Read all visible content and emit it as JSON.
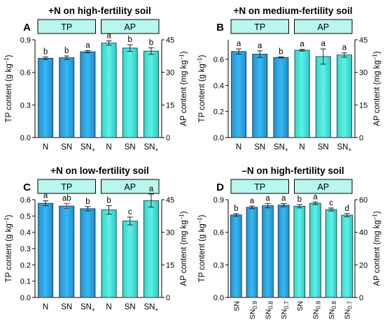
{
  "chart_data": [
    {
      "type": "bar",
      "label": "A",
      "title": "+N on high-fertility soil",
      "groups": [
        "TP",
        "AP"
      ],
      "ylabel_left": "TP content (g kg⁻¹)",
      "ylabel_right": "AP content (mg kg⁻¹)",
      "ylim_left": [
        0,
        0.9
      ],
      "ylim_right": [
        0,
        45
      ],
      "yticks_left": [
        "0.0",
        "0.3",
        "0.6",
        "0.9"
      ],
      "yticks_right": [
        "0",
        "15",
        "30",
        "45"
      ],
      "categories": [
        "N",
        "SN",
        "SN+"
      ],
      "series": [
        {
          "group": "TP",
          "axis": "left",
          "values": [
            0.73,
            0.735,
            0.79
          ],
          "errors": [
            0.012,
            0.016,
            0.01
          ],
          "letters": [
            "b",
            "b",
            "a"
          ]
        },
        {
          "group": "AP",
          "axis": "right",
          "values": [
            43.5,
            41.2,
            39.8
          ],
          "errors": [
            1.0,
            1.5,
            1.5
          ],
          "letters": [
            "a",
            "b",
            "b"
          ]
        }
      ]
    },
    {
      "type": "bar",
      "label": "B",
      "title": "+N on medium-fertility soil",
      "groups": [
        "TP",
        "AP"
      ],
      "ylabel_left": "TP content (g kg⁻¹)",
      "ylabel_right": "AP content (mg kg⁻¹)",
      "ylim_left": [
        0,
        0.75
      ],
      "ylim_right": [
        0,
        45
      ],
      "yticks_left": [
        "0.0",
        "0.2",
        "0.4",
        "0.6"
      ],
      "yticks_right": [
        "0",
        "15",
        "30",
        "45"
      ],
      "categories": [
        "N",
        "SN",
        "SN+"
      ],
      "series": [
        {
          "group": "TP",
          "axis": "left",
          "values": [
            0.66,
            0.64,
            0.615
          ],
          "errors": [
            0.02,
            0.025,
            0.004
          ],
          "letters": [
            "a",
            "a",
            "b"
          ]
        },
        {
          "group": "AP",
          "axis": "right",
          "values": [
            40.2,
            37.3,
            38.0
          ],
          "errors": [
            0.4,
            3.5,
            1.0
          ],
          "letters": [
            "a",
            "a",
            "a"
          ]
        }
      ]
    },
    {
      "type": "bar",
      "label": "C",
      "title": "+N on low-fertility soil",
      "groups": [
        "TP",
        "AP"
      ],
      "ylabel_left": "TP content (g kg⁻¹)",
      "ylabel_right": "AP content (mg kg⁻¹)",
      "ylim_left": [
        0,
        0.6
      ],
      "ylim_right": [
        0,
        45
      ],
      "yticks_left": [
        "0.0",
        "0.1",
        "0.2",
        "0.3",
        "0.4",
        "0.5",
        "0.6"
      ],
      "yticks_right": [
        "0",
        "15",
        "30",
        "45"
      ],
      "categories": [
        "N",
        "SN",
        "SN+"
      ],
      "series": [
        {
          "group": "TP",
          "axis": "left",
          "values": [
            0.578,
            0.561,
            0.545
          ],
          "errors": [
            0.015,
            0.015,
            0.013
          ],
          "letters": [
            "a",
            "ab",
            "b"
          ]
        },
        {
          "group": "AP",
          "axis": "right",
          "values": [
            40.3,
            35.2,
            44.6
          ],
          "errors": [
            2.0,
            1.8,
            3.0
          ],
          "letters": [
            "b",
            "c",
            "a"
          ]
        }
      ]
    },
    {
      "type": "bar",
      "label": "D",
      "title": "–N on high-fertility soil",
      "groups": [
        "TP",
        "AP"
      ],
      "ylabel_left": "TP content (g kg⁻¹)",
      "ylabel_right": "AP content (mg kg⁻¹)",
      "ylim_left": [
        0,
        0.9
      ],
      "ylim_right": [
        0,
        60
      ],
      "yticks_left": [
        "0.0",
        "0.3",
        "0.6",
        "0.9"
      ],
      "yticks_right": [
        "0",
        "20",
        "40",
        "60"
      ],
      "categories": [
        "SN",
        "SN0.9",
        "SN0.8",
        "SN0.7"
      ],
      "series": [
        {
          "group": "TP",
          "axis": "left",
          "values": [
            0.76,
            0.83,
            0.845,
            0.85
          ],
          "errors": [
            0.012,
            0.012,
            0.02,
            0.015
          ],
          "letters": [
            "b",
            "a",
            "a",
            "a"
          ]
        },
        {
          "group": "AP",
          "axis": "right",
          "values": [
            56.0,
            57.8,
            54.0,
            50.5
          ],
          "errors": [
            1.0,
            0.8,
            0.9,
            1.0
          ],
          "letters": [
            "b",
            "a",
            "c",
            "d"
          ]
        }
      ]
    }
  ]
}
